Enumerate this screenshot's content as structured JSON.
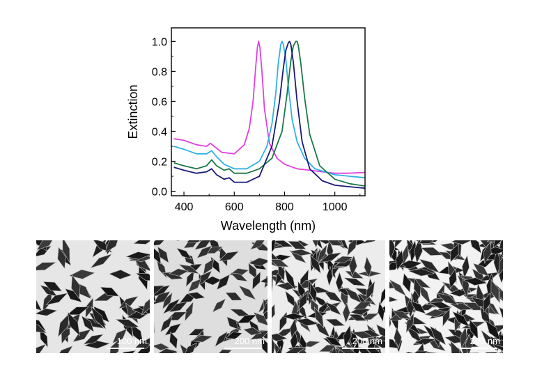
{
  "chart_data": {
    "type": "line",
    "title": "",
    "xlabel": "Wavelength (nm)",
    "ylabel": "Extinction",
    "xlim": [
      350,
      1120
    ],
    "ylim": [
      -0.03,
      1.09
    ],
    "xticks": [
      400,
      600,
      800,
      1000
    ],
    "yticks": [
      0.0,
      0.2,
      0.4,
      0.6,
      0.8,
      1.0
    ],
    "xtick_labels": [
      "400",
      "600",
      "800",
      "1000"
    ],
    "ytick_labels": [
      "0.0",
      "0.2",
      "0.4",
      "0.6",
      "0.8",
      "1.0"
    ],
    "grid": false,
    "legend": "none",
    "series": [
      {
        "color": "#e040e0",
        "x": [
          360,
          400,
          450,
          490,
          505,
          520,
          550,
          600,
          640,
          660,
          675,
          685,
          692,
          697,
          702,
          710,
          720,
          740,
          770,
          800,
          850,
          900,
          950,
          1000,
          1050,
          1120
        ],
        "y": [
          0.35,
          0.34,
          0.31,
          0.3,
          0.32,
          0.3,
          0.26,
          0.25,
          0.31,
          0.42,
          0.6,
          0.82,
          0.96,
          1.0,
          0.96,
          0.8,
          0.55,
          0.32,
          0.22,
          0.18,
          0.15,
          0.14,
          0.13,
          0.12,
          0.12,
          0.125
        ]
      },
      {
        "color": "#30b0e8",
        "x": [
          360,
          400,
          450,
          490,
          510,
          530,
          560,
          600,
          650,
          700,
          730,
          750,
          765,
          775,
          785,
          790,
          795,
          805,
          815,
          830,
          850,
          880,
          920,
          1000,
          1060,
          1120
        ],
        "y": [
          0.3,
          0.28,
          0.25,
          0.25,
          0.27,
          0.23,
          0.18,
          0.15,
          0.15,
          0.2,
          0.3,
          0.45,
          0.65,
          0.85,
          0.98,
          1.0,
          0.98,
          0.88,
          0.7,
          0.48,
          0.33,
          0.22,
          0.15,
          0.11,
          0.1,
          0.09
        ]
      },
      {
        "color": "#1a7848",
        "x": [
          360,
          400,
          450,
          490,
          510,
          530,
          560,
          580,
          600,
          650,
          700,
          750,
          790,
          810,
          825,
          835,
          845,
          850,
          855,
          865,
          880,
          900,
          940,
          1000,
          1060,
          1120
        ],
        "y": [
          0.19,
          0.17,
          0.15,
          0.17,
          0.21,
          0.17,
          0.14,
          0.15,
          0.12,
          0.12,
          0.15,
          0.22,
          0.4,
          0.65,
          0.87,
          0.97,
          1.0,
          1.0,
          0.97,
          0.85,
          0.62,
          0.38,
          0.17,
          0.08,
          0.05,
          0.035
        ]
      },
      {
        "color": "#1a1a78",
        "x": [
          360,
          400,
          450,
          490,
          510,
          530,
          560,
          580,
          600,
          650,
          700,
          750,
          780,
          795,
          805,
          815,
          820,
          825,
          835,
          850,
          870,
          900,
          950,
          1000,
          1060,
          1120
        ],
        "y": [
          0.16,
          0.14,
          0.12,
          0.13,
          0.15,
          0.11,
          0.08,
          0.09,
          0.06,
          0.06,
          0.1,
          0.3,
          0.6,
          0.82,
          0.94,
          0.99,
          1.0,
          0.98,
          0.86,
          0.6,
          0.33,
          0.15,
          0.07,
          0.04,
          0.03,
          0.02
        ]
      }
    ]
  },
  "tem_images": [
    {
      "scale_label": "100 nm",
      "background": "#e6e6e6",
      "particle_color": "#232323"
    },
    {
      "scale_label": "200 nm",
      "background": "#dedede",
      "particle_color": "#262626"
    },
    {
      "scale_label": "200 nm",
      "background": "#ececec",
      "particle_color": "#2c2c2c"
    },
    {
      "scale_label": "200 nm",
      "background": "#f2f2f2",
      "particle_color": "#2e2e2e"
    }
  ]
}
